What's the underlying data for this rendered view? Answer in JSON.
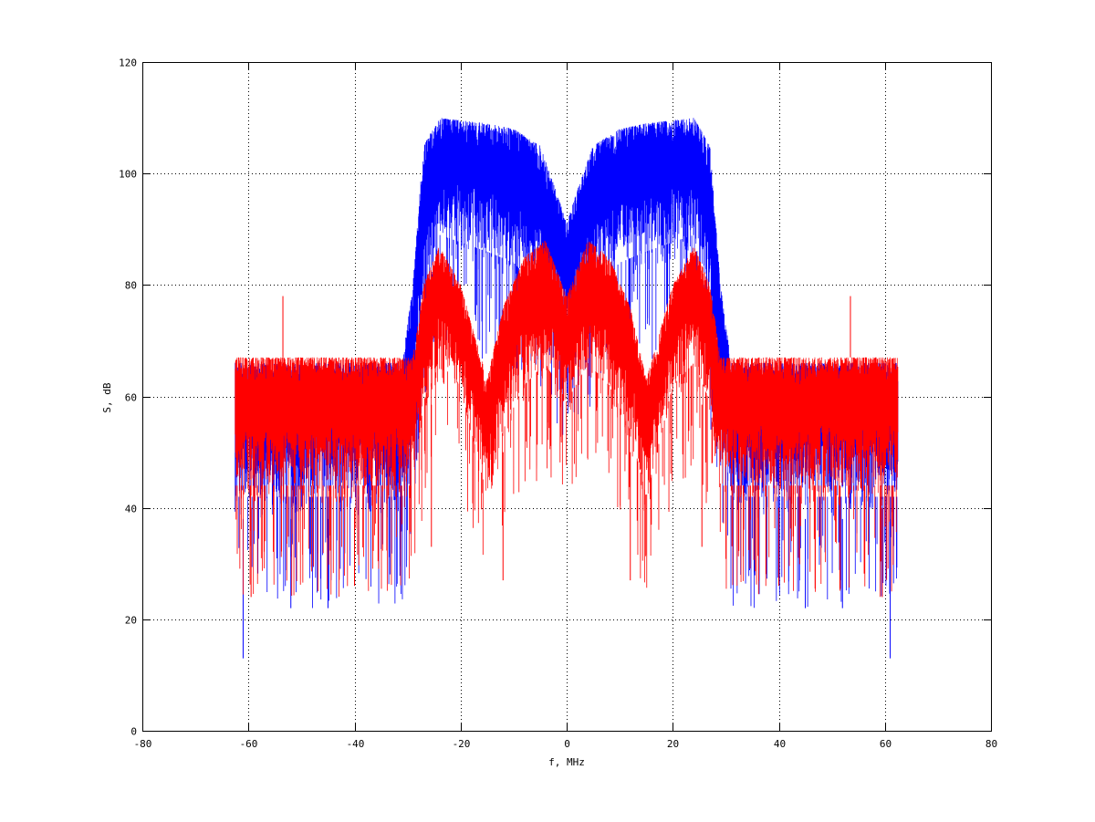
{
  "chart_data": {
    "type": "line",
    "title": "",
    "xlabel": "f, MHz",
    "ylabel": "S, dB",
    "xlim": [
      -80,
      80
    ],
    "ylim": [
      0,
      120
    ],
    "xticks": [
      -80,
      -60,
      -40,
      -20,
      0,
      20,
      40,
      60,
      80
    ],
    "yticks": [
      0,
      20,
      40,
      60,
      80,
      100,
      120
    ],
    "xtick_labels": [
      "-80",
      "-60",
      "-40",
      "-20",
      "0",
      "20",
      "40",
      "60",
      "80"
    ],
    "ytick_labels": [
      "0",
      "20",
      "40",
      "60",
      "80",
      "100",
      "120"
    ],
    "grid": true,
    "legend": "none",
    "x_range_data": [
      -62.5,
      62.5
    ],
    "series": [
      {
        "color": "#0000ff",
        "style": "noisy spectrum",
        "envelope": {
          "x": [
            -62.5,
            -31,
            -29,
            -27,
            -24,
            -15,
            -10,
            -5,
            -2,
            0,
            2,
            5,
            10,
            15,
            24,
            27,
            29,
            31,
            62.5
          ],
          "upper": [
            66,
            66,
            80,
            105,
            110,
            109,
            108,
            105,
            97,
            91,
            97,
            105,
            108,
            109,
            110,
            105,
            80,
            66,
            66
          ],
          "lower": [
            38,
            38,
            52,
            70,
            85,
            82,
            80,
            75,
            70,
            68,
            70,
            75,
            80,
            82,
            85,
            70,
            52,
            38,
            38
          ]
        },
        "spikes": [
          {
            "x": -61,
            "y": 13
          },
          {
            "x": 61,
            "y": 13
          },
          {
            "x": -52,
            "y": 22
          },
          {
            "x": -45,
            "y": 22
          },
          {
            "x": 45,
            "y": 22
          },
          {
            "x": 52,
            "y": 22
          }
        ]
      },
      {
        "color": "#ff0000",
        "style": "noisy spectrum",
        "envelope": {
          "x": [
            -62.5,
            -29,
            -27,
            -24,
            -20,
            -15,
            -12,
            -8,
            -4,
            0,
            4,
            8,
            12,
            15,
            20,
            24,
            27,
            29,
            62.5
          ],
          "upper": [
            67,
            67,
            80,
            87,
            80,
            63,
            76,
            85,
            88,
            78,
            88,
            85,
            76,
            63,
            80,
            87,
            80,
            67,
            67
          ],
          "lower": [
            40,
            40,
            55,
            62,
            58,
            38,
            50,
            58,
            62,
            55,
            62,
            58,
            50,
            38,
            58,
            62,
            55,
            40,
            40
          ]
        },
        "spikes": [
          {
            "x": -53.5,
            "y": 78
          },
          {
            "x": 53.5,
            "y": 78
          },
          {
            "x": -59.5,
            "y": 24
          },
          {
            "x": 59.5,
            "y": 24
          },
          {
            "x": -40,
            "y": 26
          },
          {
            "x": 40,
            "y": 26
          },
          {
            "x": -12,
            "y": 27
          },
          {
            "x": 12,
            "y": 27
          },
          {
            "x": -25.5,
            "y": 33
          },
          {
            "x": 25.5,
            "y": 33
          }
        ]
      }
    ]
  }
}
